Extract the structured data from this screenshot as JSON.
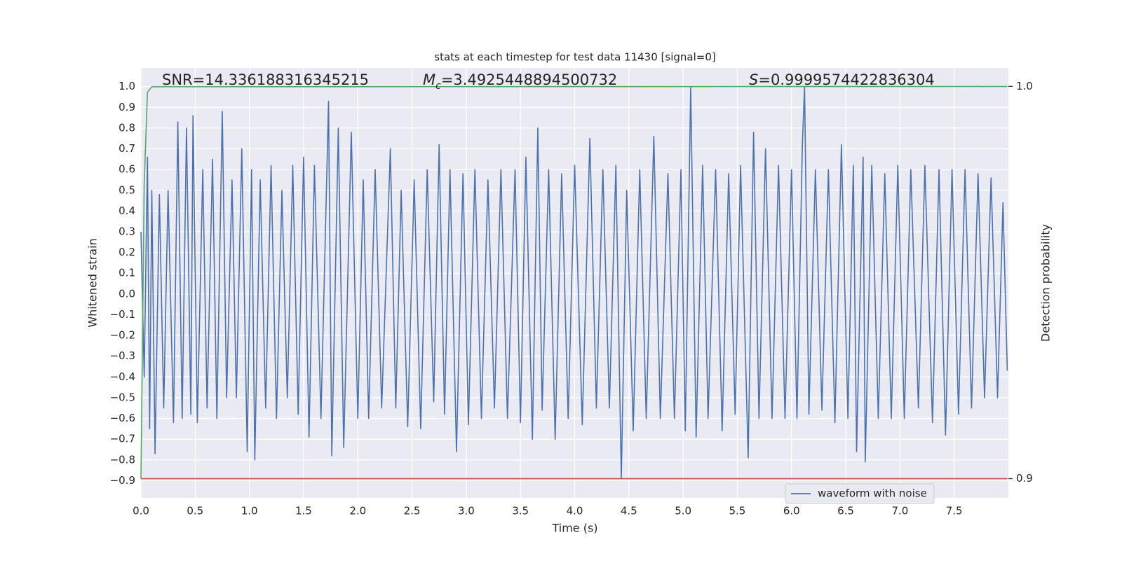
{
  "chart_data": {
    "type": "line",
    "title": "stats at each timestep for test data 11430 [signal=0]",
    "xlabel": "Time (s)",
    "ylabel": "Whitened strain",
    "y2label": "Detection probability",
    "annotations": [
      {
        "text": "SNR=14.336188316345215"
      },
      {
        "italic": "M",
        "sub": "c",
        "text": "=3.4925448894500732"
      },
      {
        "italic": "S",
        "text": "=0.9999574422836304"
      }
    ],
    "xlim": [
      0,
      8.0
    ],
    "ylim": [
      -0.983,
      1.09
    ],
    "y2lim": [
      0.8951,
      1.0047
    ],
    "xticks": [
      {
        "value": 0,
        "label": "0.0"
      },
      0.5,
      {
        "value": 1,
        "label": "1.0"
      },
      1.5,
      {
        "value": 2,
        "label": "2.0"
      },
      2.5,
      {
        "value": 3,
        "label": "3.0"
      },
      3.5,
      {
        "value": 4,
        "label": "4.0"
      },
      4.5,
      {
        "value": 5,
        "label": "5.0"
      },
      5.5,
      {
        "value": 6,
        "label": "6.0"
      },
      6.5,
      {
        "value": 7,
        "label": "7.0"
      },
      7.5
    ],
    "yticks": [
      {
        "value": 1,
        "label": "1.0"
      },
      0.9,
      0.8,
      0.7,
      0.6,
      0.5,
      0.4,
      0.3,
      0.2,
      0.1,
      {
        "value": 0,
        "label": "0.0"
      },
      {
        "value": -0.1,
        "label": "−0.1"
      },
      {
        "value": -0.2,
        "label": "−0.2"
      },
      {
        "value": -0.3,
        "label": "−0.3"
      },
      {
        "value": -0.4,
        "label": "−0.4"
      },
      {
        "value": -0.5,
        "label": "−0.5"
      },
      {
        "value": -0.6,
        "label": "−0.6"
      },
      {
        "value": -0.7,
        "label": "−0.7"
      },
      {
        "value": -0.8,
        "label": "−0.8"
      },
      {
        "value": -0.9,
        "label": "−0.9"
      }
    ],
    "y2ticks": [
      {
        "value": 1,
        "label": "1.0"
      },
      0.9
    ],
    "grid": true,
    "legend": "lower right",
    "series": [
      {
        "name": "waveform with noise",
        "color": "#4c72b0",
        "x": [
          0.0,
          0.03,
          0.06,
          0.08,
          0.1,
          0.13,
          0.17,
          0.21,
          0.25,
          0.3,
          0.34,
          0.38,
          0.42,
          0.46,
          0.48,
          0.52,
          0.57,
          0.61,
          0.66,
          0.7,
          0.75,
          0.79,
          0.84,
          0.88,
          0.93,
          0.98,
          1.02,
          1.05,
          1.1,
          1.15,
          1.2,
          1.25,
          1.3,
          1.35,
          1.4,
          1.45,
          1.5,
          1.55,
          1.6,
          1.66,
          1.73,
          1.76,
          1.82,
          1.87,
          1.94,
          2.0,
          2.05,
          2.1,
          2.16,
          2.22,
          2.3,
          2.35,
          2.4,
          2.46,
          2.52,
          2.58,
          2.64,
          2.7,
          2.75,
          2.8,
          2.85,
          2.91,
          2.97,
          3.02,
          3.08,
          3.14,
          3.2,
          3.26,
          3.32,
          3.38,
          3.45,
          3.5,
          3.55,
          3.61,
          3.66,
          3.7,
          3.76,
          3.82,
          3.88,
          3.94,
          4.0,
          4.07,
          4.14,
          4.2,
          4.26,
          4.32,
          4.38,
          4.43,
          4.48,
          4.54,
          4.6,
          4.66,
          4.73,
          4.79,
          4.86,
          4.92,
          4.98,
          5.02,
          5.07,
          5.12,
          5.18,
          5.23,
          5.3,
          5.36,
          5.42,
          5.48,
          5.53,
          5.6,
          5.65,
          5.7,
          5.76,
          5.82,
          5.88,
          5.94,
          6.0,
          6.05,
          6.1,
          6.12,
          6.16,
          6.22,
          6.28,
          6.34,
          6.4,
          6.46,
          6.52,
          6.57,
          6.6,
          6.66,
          6.68,
          6.74,
          6.8,
          6.86,
          6.92,
          6.98,
          7.04,
          7.1,
          7.17,
          7.23,
          7.3,
          7.36,
          7.42,
          7.48,
          7.54,
          7.6,
          7.66,
          7.72,
          7.78,
          7.84,
          7.9,
          7.95,
          7.99
        ],
        "values": [
          0.3,
          -0.4,
          0.66,
          -0.65,
          0.5,
          -0.77,
          0.48,
          -0.55,
          0.5,
          -0.62,
          0.83,
          -0.6,
          0.8,
          -0.58,
          0.86,
          -0.62,
          0.6,
          -0.55,
          0.65,
          -0.6,
          0.88,
          -0.5,
          0.55,
          -0.5,
          0.7,
          -0.76,
          0.6,
          -0.8,
          0.55,
          -0.55,
          0.62,
          -0.6,
          0.5,
          -0.5,
          0.62,
          -0.58,
          0.66,
          -0.69,
          0.62,
          -0.6,
          0.93,
          -0.78,
          0.8,
          -0.74,
          0.78,
          -0.6,
          0.55,
          -0.6,
          0.6,
          -0.55,
          0.7,
          -0.55,
          0.5,
          -0.64,
          0.55,
          -0.65,
          0.6,
          -0.52,
          0.72,
          -0.58,
          0.6,
          -0.76,
          0.58,
          -0.63,
          0.6,
          -0.6,
          0.55,
          -0.55,
          0.6,
          -0.6,
          0.6,
          -0.62,
          0.66,
          -0.7,
          0.8,
          -0.56,
          0.6,
          -0.7,
          0.58,
          -0.6,
          0.62,
          -0.63,
          0.75,
          -0.55,
          0.6,
          -0.55,
          0.62,
          -0.89,
          0.5,
          -0.66,
          0.6,
          -0.6,
          0.76,
          -0.6,
          0.58,
          -0.6,
          0.6,
          -0.66,
          1.0,
          -0.69,
          0.62,
          -0.6,
          0.6,
          -0.66,
          0.58,
          -0.58,
          0.62,
          -0.79,
          0.78,
          -0.6,
          0.7,
          -0.6,
          0.62,
          -0.6,
          0.6,
          -0.6,
          0.72,
          1.0,
          -0.58,
          0.6,
          -0.56,
          0.6,
          -0.62,
          0.72,
          -0.6,
          0.62,
          -0.76,
          0.66,
          -0.81,
          0.62,
          -0.6,
          0.58,
          -0.6,
          0.62,
          -0.6,
          0.6,
          -0.55,
          0.62,
          -0.62,
          0.6,
          -0.68,
          0.6,
          -0.58,
          0.6,
          -0.55,
          0.58,
          -0.5,
          0.56,
          -0.5,
          0.44,
          -0.37
        ]
      },
      {
        "color": "#55a868",
        "axis": "y2",
        "x": [
          0.0,
          0.03,
          0.06,
          0.1,
          7.99
        ],
        "values": [
          0.9,
          0.975,
          0.9985,
          0.9999,
          0.99997
        ]
      },
      {
        "color": "#c44e52",
        "axis": "y2",
        "x": [
          0.0,
          7.99
        ],
        "values": [
          0.9,
          0.9
        ]
      }
    ]
  }
}
